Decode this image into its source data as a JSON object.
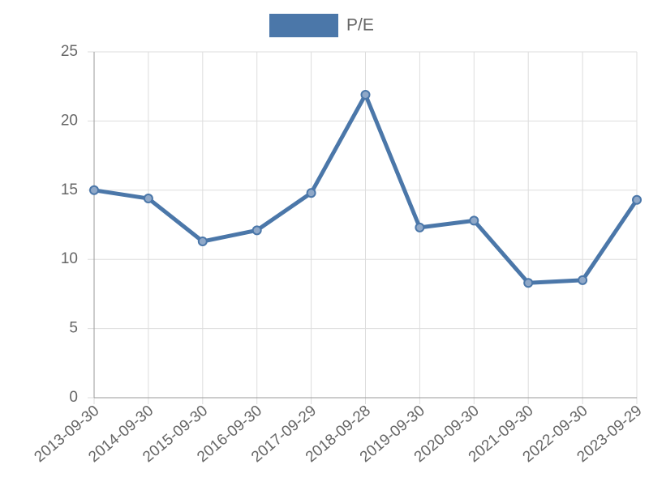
{
  "chart_data": {
    "type": "line",
    "categories": [
      "2013-09-30",
      "2014-09-30",
      "2015-09-30",
      "2016-09-30",
      "2017-09-29",
      "2018-09-28",
      "2019-09-30",
      "2020-09-30",
      "2021-09-30",
      "2022-09-30",
      "2023-09-29"
    ],
    "series": [
      {
        "name": "P/E",
        "color": "#4b77a9",
        "values": [
          15.0,
          14.4,
          11.3,
          12.1,
          14.8,
          21.9,
          12.3,
          12.8,
          8.3,
          8.5,
          14.3
        ]
      }
    ],
    "ylim": [
      0,
      25
    ],
    "yticks": [
      0,
      5,
      10,
      15,
      20,
      25
    ],
    "grid": true,
    "legend": "top"
  }
}
